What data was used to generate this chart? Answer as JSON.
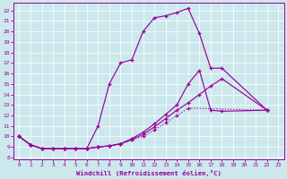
{
  "xlabel": "Windchill (Refroidissement éolien,°C)",
  "bg_color": "#cce8ed",
  "line_color": "#990099",
  "xlim": [
    -0.5,
    23.5
  ],
  "ylim": [
    7.8,
    22.7
  ],
  "yticks": [
    8,
    9,
    10,
    11,
    12,
    13,
    14,
    15,
    16,
    17,
    18,
    19,
    20,
    21,
    22
  ],
  "xticks": [
    0,
    1,
    2,
    3,
    4,
    5,
    6,
    7,
    8,
    9,
    10,
    11,
    12,
    13,
    14,
    15,
    16,
    17,
    18,
    19,
    20,
    21,
    22,
    23
  ],
  "curve1_x": [
    0,
    1,
    2,
    3,
    4,
    5,
    6,
    7,
    8,
    9,
    10,
    11,
    12,
    13,
    14,
    15,
    16,
    17,
    18,
    22
  ],
  "curve1_y": [
    10.0,
    9.2,
    8.85,
    8.85,
    8.85,
    8.85,
    8.85,
    11.0,
    15.0,
    17.0,
    17.3,
    20.0,
    21.3,
    21.5,
    21.8,
    22.2,
    19.8,
    16.5,
    16.5,
    12.5
  ],
  "curve2_x": [
    0,
    1,
    2,
    3,
    4,
    5,
    6,
    7,
    8,
    9,
    10,
    11,
    12,
    13,
    14,
    15,
    16,
    17,
    18,
    22
  ],
  "curve2_y": [
    10.0,
    9.2,
    8.85,
    8.85,
    8.85,
    8.85,
    8.85,
    9.0,
    9.1,
    9.3,
    9.7,
    10.2,
    10.9,
    11.7,
    12.5,
    13.2,
    14.0,
    14.8,
    15.5,
    12.5
  ],
  "curve3_x": [
    0,
    1,
    2,
    3,
    4,
    5,
    6,
    7,
    8,
    9,
    10,
    11,
    12,
    13,
    14,
    15,
    16,
    17,
    18,
    22
  ],
  "curve3_y": [
    10.0,
    9.2,
    8.85,
    8.85,
    8.85,
    8.85,
    8.85,
    9.0,
    9.1,
    9.3,
    9.8,
    10.4,
    11.2,
    12.1,
    13.0,
    15.0,
    16.3,
    12.5,
    12.4,
    12.5
  ],
  "curve4_x": [
    0,
    1,
    2,
    3,
    4,
    5,
    6,
    7,
    8,
    9,
    10,
    11,
    12,
    13,
    14,
    15,
    22
  ],
  "curve4_y": [
    10.0,
    9.2,
    8.85,
    8.85,
    8.85,
    8.85,
    8.85,
    9.0,
    9.1,
    9.3,
    9.7,
    10.0,
    10.6,
    11.3,
    12.0,
    12.7,
    12.5
  ]
}
